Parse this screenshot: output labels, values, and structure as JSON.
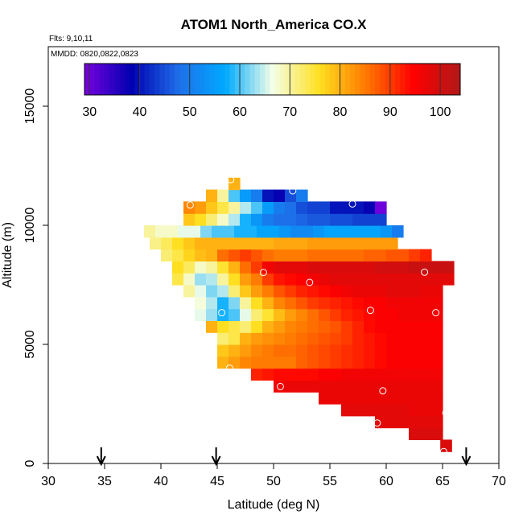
{
  "chart_data": {
    "type": "heatmap",
    "title": "ATOM1 North_America CO.X",
    "flights_label": "Flts: 9,10,11",
    "dates_label": "MMDD: 0820,0822,0823",
    "xlabel": "Latitude (deg N)",
    "ylabel": "Altitude (m)",
    "xlim": [
      30,
      70
    ],
    "ylim": [
      0,
      17500
    ],
    "x_ticks": [
      "30",
      "35",
      "40",
      "45",
      "50",
      "55",
      "60",
      "65",
      "70"
    ],
    "y_ticks": [
      "0",
      "5000",
      "10000",
      "15000"
    ],
    "colorbar": {
      "range": [
        29,
        104
      ],
      "ticks": [
        "30",
        "40",
        "50",
        "60",
        "70",
        "80",
        "90",
        "100"
      ],
      "colors": [
        "#7a00e0",
        "#0000b0",
        "#1e6ee8",
        "#00aaff",
        "#f4ffe8",
        "#ffe020",
        "#ff7800",
        "#ff0000",
        "#b01818"
      ]
    },
    "grid": {
      "lat_start": 38.5,
      "lat_step": 1.0,
      "alt_step": 500
    },
    "rows": [
      {
        "alt": 750,
        "lat0": 64.8,
        "values": [
          99
        ]
      },
      {
        "alt": 1250,
        "lat0": 62.0,
        "values": [
          99,
          99,
          99
        ]
      },
      {
        "alt": 1750,
        "lat0": 59.0,
        "values": [
          98,
          98,
          98,
          98,
          98,
          98
        ]
      },
      {
        "alt": 2250,
        "lat0": 56.0,
        "values": [
          98,
          98,
          98,
          98,
          98,
          98,
          97,
          97,
          97
        ]
      },
      {
        "alt": 2750,
        "lat0": 54.0,
        "values": [
          97,
          97,
          97,
          97,
          97,
          97,
          97,
          97,
          97,
          97,
          97
        ]
      },
      {
        "alt": 3250,
        "lat0": 50.0,
        "values": [
          96,
          97,
          97,
          97,
          97,
          97,
          97,
          97,
          97,
          97,
          97,
          97,
          97,
          97,
          97
        ]
      },
      {
        "alt": 3750,
        "lat0": 48.0,
        "values": [
          92,
          93,
          94,
          94,
          94,
          94,
          95,
          95,
          96,
          96,
          96,
          96,
          96,
          96,
          96,
          96,
          96
        ]
      },
      {
        "alt": 4250,
        "lat0": 45.0,
        "values": [
          80,
          82,
          84,
          85,
          85,
          85,
          85,
          87,
          88,
          89,
          90,
          91,
          92,
          93,
          94,
          95,
          95,
          95,
          95,
          95
        ]
      },
      {
        "alt": 4750,
        "lat0": 45.0,
        "values": [
          78,
          80,
          82,
          84,
          85,
          86,
          86,
          87,
          88,
          89,
          90,
          91,
          92,
          93,
          94,
          95,
          95,
          95,
          95,
          95
        ]
      },
      {
        "alt": 5250,
        "lat0": 45.0,
        "values": [
          72,
          74,
          80,
          82,
          83,
          84,
          85,
          86,
          87,
          88,
          89,
          90,
          92,
          93,
          94,
          95,
          95,
          95,
          95,
          95
        ]
      },
      {
        "alt": 5750,
        "lat0": 44.0,
        "values": [
          80,
          76,
          74,
          72,
          76,
          80,
          82,
          84,
          85,
          86,
          87,
          88,
          90,
          92,
          94,
          95,
          95,
          95,
          95,
          95,
          95
        ]
      },
      {
        "alt": 6250,
        "lat0": 43.0,
        "values": [
          66,
          63,
          58,
          60,
          66,
          72,
          75,
          79,
          82,
          84,
          86,
          88,
          90,
          92,
          93,
          94,
          95,
          95,
          96,
          96,
          96,
          96
        ]
      },
      {
        "alt": 6750,
        "lat0": 43.0,
        "values": [
          67,
          64,
          58,
          62,
          70,
          76,
          80,
          84,
          86,
          88,
          90,
          91,
          92,
          93,
          94,
          95,
          95,
          96,
          96,
          96,
          96,
          96
        ]
      },
      {
        "alt": 7250,
        "lat0": 42.0,
        "values": [
          70,
          66,
          62,
          64,
          72,
          78,
          82,
          85,
          88,
          90,
          92,
          93,
          94,
          95,
          96,
          97,
          97,
          97,
          98,
          98,
          98,
          97,
          97
        ]
      },
      {
        "alt": 7750,
        "lat0": 41.0,
        "values": [
          74,
          68,
          63,
          64,
          70,
          76,
          82,
          85,
          90,
          93,
          94,
          95,
          96,
          97,
          98,
          98,
          98,
          98,
          98,
          98,
          98,
          98,
          98,
          98,
          98
        ]
      },
      {
        "alt": 8250,
        "lat0": 41.0,
        "values": [
          76,
          73,
          68,
          70,
          75,
          80,
          86,
          90,
          96,
          98,
          98,
          98,
          99,
          99,
          99,
          99,
          99,
          99,
          100,
          100,
          100,
          101,
          101,
          101,
          101
        ]
      },
      {
        "alt": 8750,
        "lat0": 40.0,
        "values": [
          72,
          74,
          77,
          79,
          80,
          86,
          88,
          90,
          88,
          86,
          85,
          85,
          85,
          86,
          86,
          86,
          86,
          86,
          87,
          87,
          88,
          88,
          90,
          92
        ]
      },
      {
        "alt": 9250,
        "lat0": 39.0,
        "values": [
          71,
          73,
          76,
          78,
          80,
          80,
          80,
          80,
          80,
          80,
          80,
          81,
          81,
          81,
          82,
          82,
          82,
          82,
          82,
          82,
          82,
          82
        ]
      },
      {
        "alt": 9750,
        "lat0": 38.5,
        "values": [
          70,
          68,
          68,
          66,
          66,
          62,
          60,
          60,
          58,
          58,
          56,
          56,
          54,
          52,
          52,
          54,
          56,
          56,
          56,
          56,
          56,
          54,
          50
        ]
      },
      {
        "alt": 10250,
        "lat0": 42.0,
        "values": [
          78,
          76,
          72,
          68,
          64,
          58,
          54,
          50,
          48,
          48,
          47,
          46,
          46,
          45,
          45,
          44,
          44,
          44
        ]
      },
      {
        "alt": 10750,
        "lat0": 42.0,
        "values": [
          84,
          82,
          78,
          74,
          70,
          64,
          60,
          55,
          50,
          48,
          45,
          44,
          44,
          40,
          40,
          40,
          38,
          30
        ]
      },
      {
        "alt": 11250,
        "lat0": 44.0,
        "values": [
          80,
          70,
          60,
          55,
          50,
          40,
          38,
          45,
          50
        ]
      },
      {
        "alt": 11750,
        "lat0": 46.0,
        "values": [
          80
        ]
      }
    ],
    "markers": [
      {
        "lat": 46.2,
        "alt": 11920
      },
      {
        "lat": 51.7,
        "alt": 11450
      },
      {
        "lat": 42.6,
        "alt": 10850
      },
      {
        "lat": 57.0,
        "alt": 10900
      },
      {
        "lat": 49.1,
        "alt": 8020
      },
      {
        "lat": 53.2,
        "alt": 7600
      },
      {
        "lat": 63.4,
        "alt": 8030
      },
      {
        "lat": 66.8,
        "alt": 8000
      },
      {
        "lat": 45.4,
        "alt": 6330
      },
      {
        "lat": 58.6,
        "alt": 6430
      },
      {
        "lat": 64.4,
        "alt": 6330
      },
      {
        "lat": 46.1,
        "alt": 4000
      },
      {
        "lat": 50.6,
        "alt": 3230
      },
      {
        "lat": 59.7,
        "alt": 3050
      },
      {
        "lat": 65.3,
        "alt": 2120
      },
      {
        "lat": 59.2,
        "alt": 1700
      },
      {
        "lat": 65.1,
        "alt": 500
      }
    ],
    "arrows": [
      34.7,
      44.9,
      67.1
    ]
  }
}
